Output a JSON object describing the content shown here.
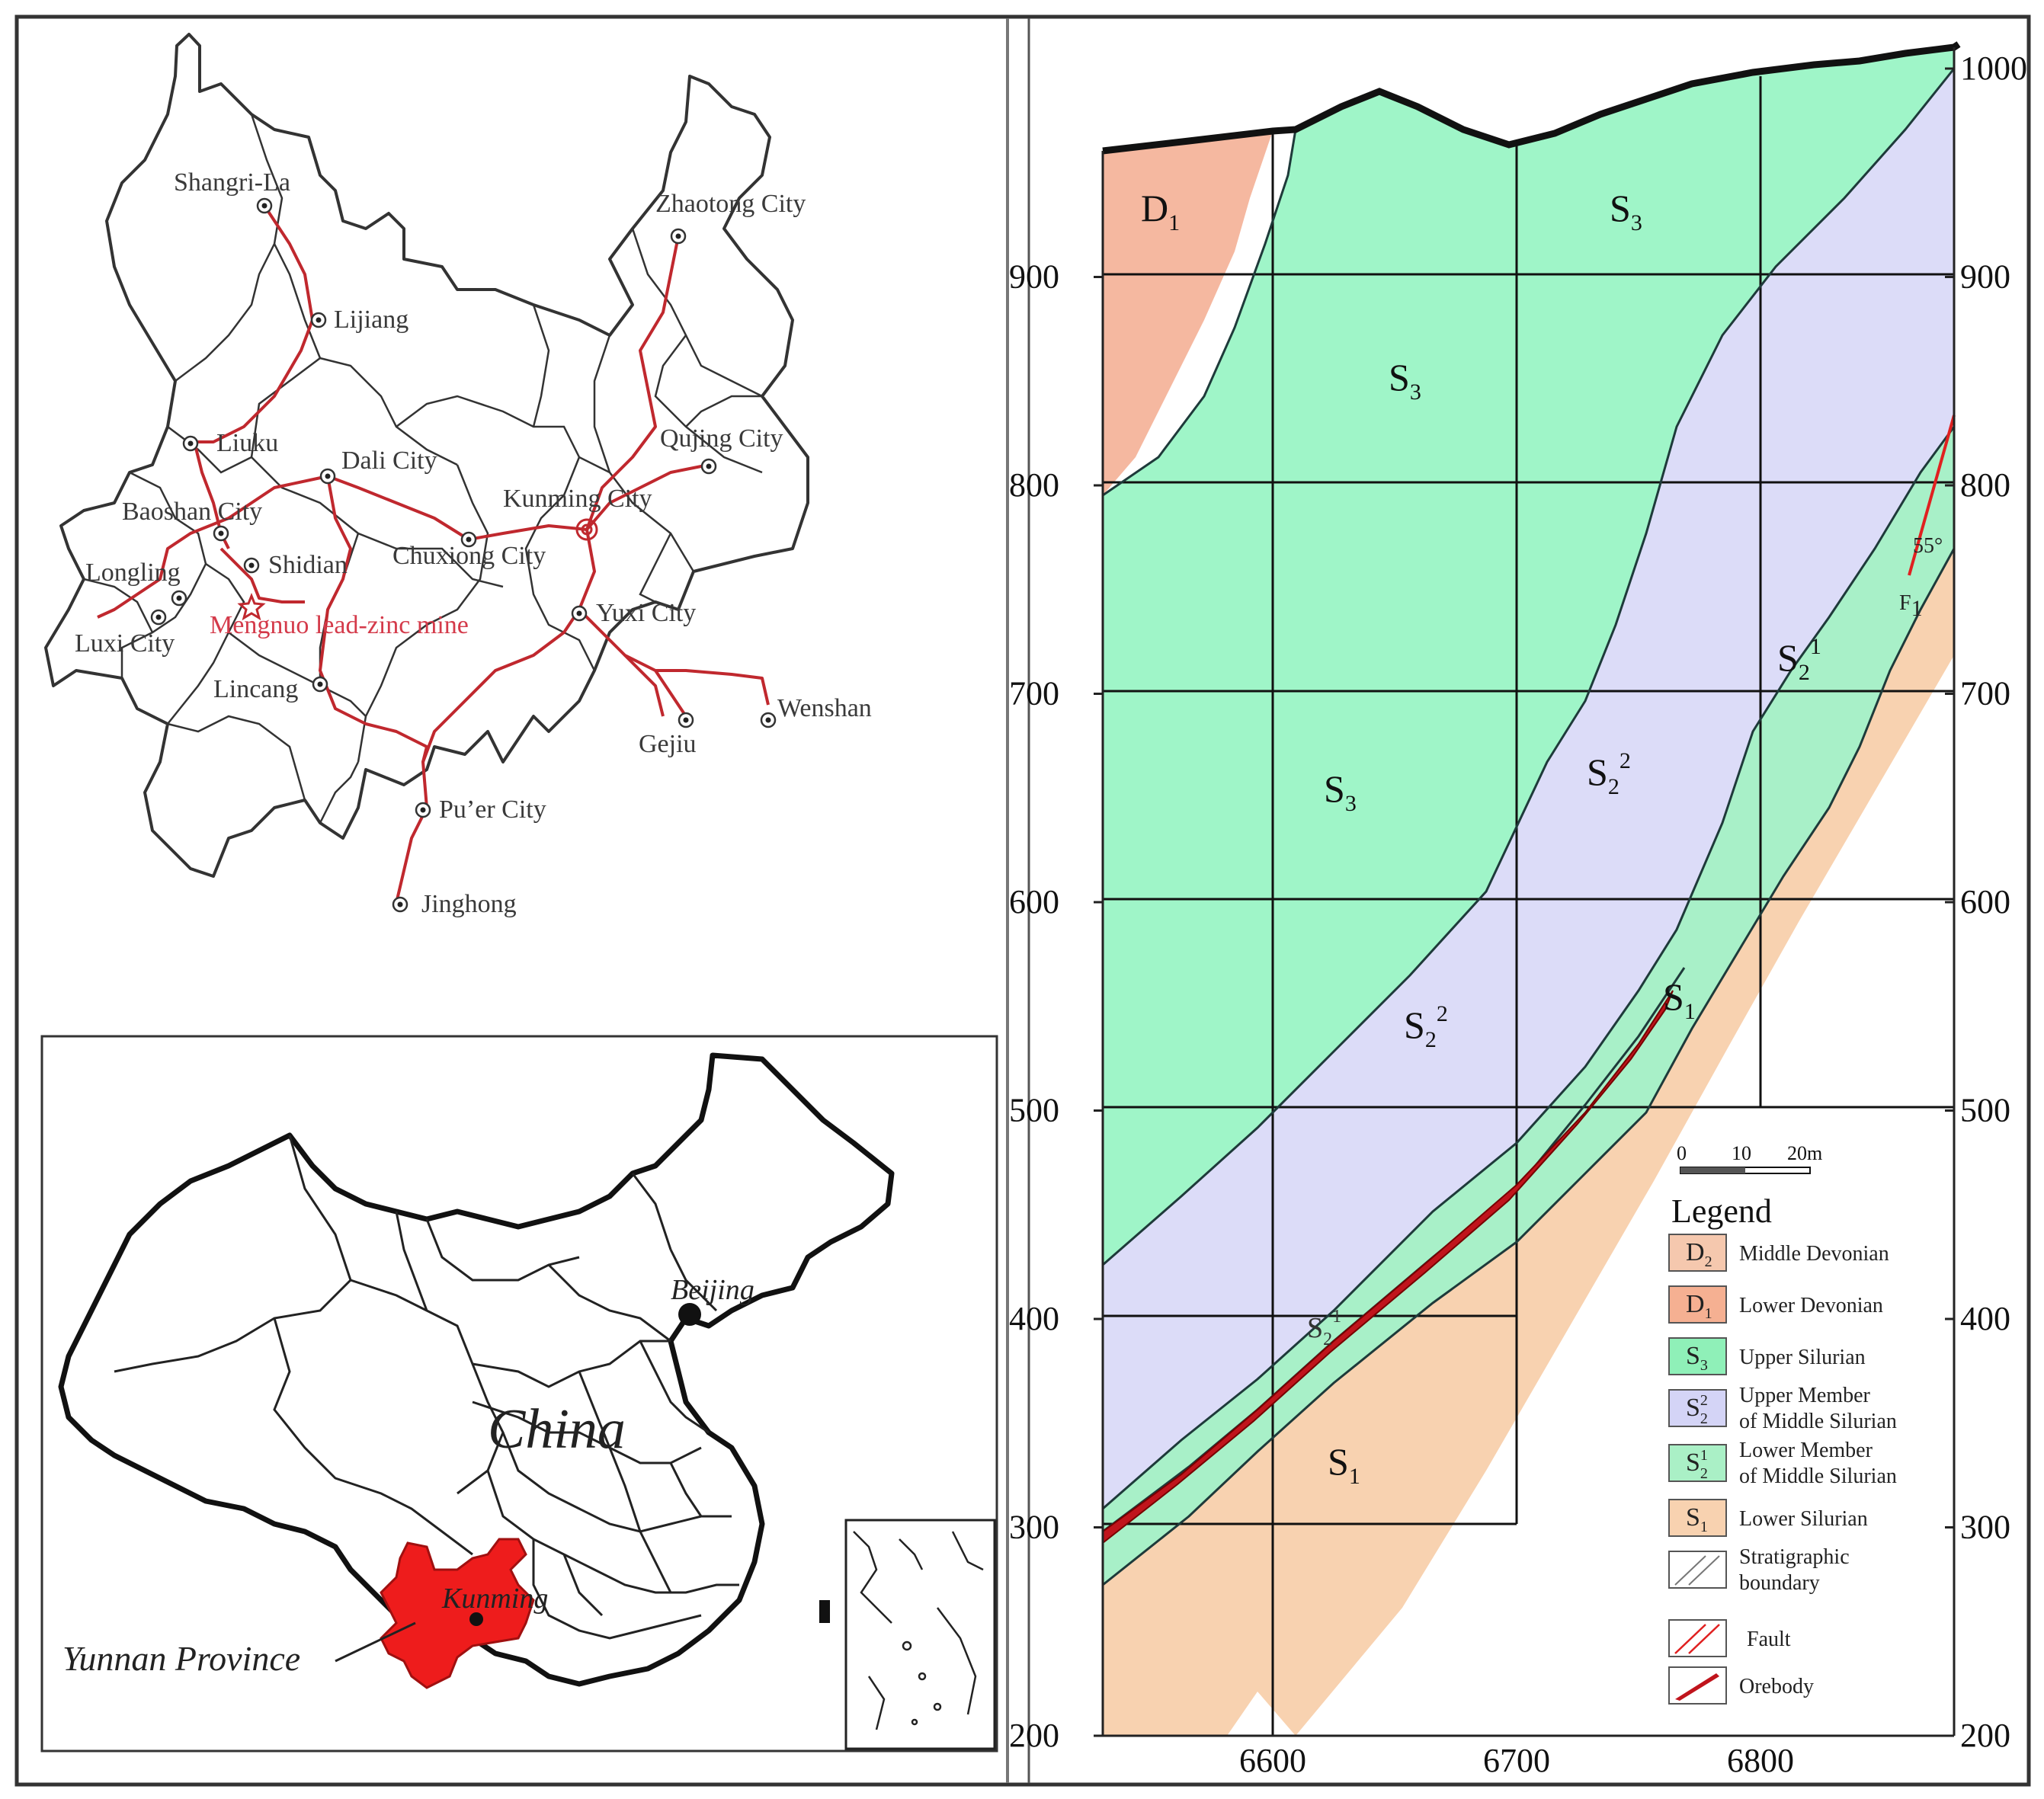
{
  "yunnan_map": {
    "cities": [
      {
        "id": "shangri-la",
        "name": "Shangri-La"
      },
      {
        "id": "zhaotong",
        "name": "Zhaotong City"
      },
      {
        "id": "lijiang",
        "name": "Lijiang"
      },
      {
        "id": "liuku",
        "name": "Liuku"
      },
      {
        "id": "dali",
        "name": "Dali City"
      },
      {
        "id": "qujing",
        "name": "Qujing City"
      },
      {
        "id": "kunming",
        "name": "Kunming City"
      },
      {
        "id": "baoshan",
        "name": "Baoshan City"
      },
      {
        "id": "shidian",
        "name": "Shidian"
      },
      {
        "id": "chuxiong",
        "name": "Chuxiong City"
      },
      {
        "id": "longling",
        "name": "Longling"
      },
      {
        "id": "yuxi",
        "name": "Yuxi City"
      },
      {
        "id": "luxi",
        "name": "Luxi City"
      },
      {
        "id": "lincang",
        "name": "Lincang"
      },
      {
        "id": "wenshan",
        "name": "Wenshan"
      },
      {
        "id": "gejiu",
        "name": "Gejiu"
      },
      {
        "id": "puer",
        "name": "Pu’er City"
      },
      {
        "id": "jinghong",
        "name": "Jinghong"
      }
    ],
    "mine_label": "Mengnuo lead-zinc mine",
    "road_color": "#c0282e"
  },
  "china_map": {
    "country_label": "China",
    "capital_label": "Beijing",
    "province_city_label": "Kunming",
    "province_label": "Yunnan Province",
    "highlight_color": "#ee1c1c"
  },
  "section": {
    "units": {
      "d1": "D",
      "s3": "S",
      "s2": "S",
      "s1": "S"
    },
    "unit_sub": {
      "d1": "1",
      "s3": "3",
      "s2": "2",
      "s1": "1"
    },
    "unit_sup": {
      "s2_upper": "2",
      "s2_lower": "1"
    },
    "fault_dip": "55°",
    "fault_name": "F",
    "fault_sub": "1",
    "y_ticks_left": [
      "900",
      "800",
      "700",
      "600",
      "500",
      "400",
      "300",
      "200"
    ],
    "y_ticks_right": [
      "1000",
      "900",
      "800",
      "700",
      "600",
      "500",
      "400",
      "300",
      "200"
    ],
    "x_ticks": [
      "6600",
      "6700",
      "6800"
    ],
    "scale_bar": {
      "labels": [
        "0",
        "10",
        "20m"
      ]
    },
    "colors": {
      "d1": "#f5b8a0",
      "s3": "#9ff5c8",
      "s2_upper": "#dcdcf8",
      "s2_lower": "#a8f0c8",
      "s1": "#f8d2b0",
      "orebody": "#c0141c",
      "fault": "#e02020"
    },
    "legend": {
      "title": "Legend",
      "items": [
        {
          "symbol": "D",
          "sub": "2",
          "sup": "",
          "color": "#f5c8ae",
          "label": "Middle Devonian",
          "label2": ""
        },
        {
          "symbol": "D",
          "sub": "1",
          "sup": "",
          "color": "#f5b092",
          "label": "Lower Devonian",
          "label2": ""
        },
        {
          "symbol": "S",
          "sub": "3",
          "sup": "",
          "color": "#8ff0b8",
          "label": "Upper Silurian",
          "label2": ""
        },
        {
          "symbol": "S",
          "sub": "2",
          "sup": "2",
          "color": "#d4d4f6",
          "label": "Upper Member",
          "label2": "of Middle Silurian"
        },
        {
          "symbol": "S",
          "sub": "2",
          "sup": "1",
          "color": "#aaf0c6",
          "label": "Lower Member",
          "label2": "of Middle Silurian"
        },
        {
          "symbol": "S",
          "sub": "1",
          "sup": "",
          "color": "#f8d2b0",
          "label": "Lower Silurian",
          "label2": ""
        },
        {
          "symbol": "",
          "sub": "",
          "sup": "",
          "color": "",
          "label": "Stratigraphic",
          "label2": "boundary"
        },
        {
          "symbol": "",
          "sub": "",
          "sup": "",
          "color": "",
          "label": "Fault",
          "label2": ""
        },
        {
          "symbol": "",
          "sub": "",
          "sup": "",
          "color": "",
          "label": "Orebody",
          "label2": ""
        }
      ]
    }
  }
}
